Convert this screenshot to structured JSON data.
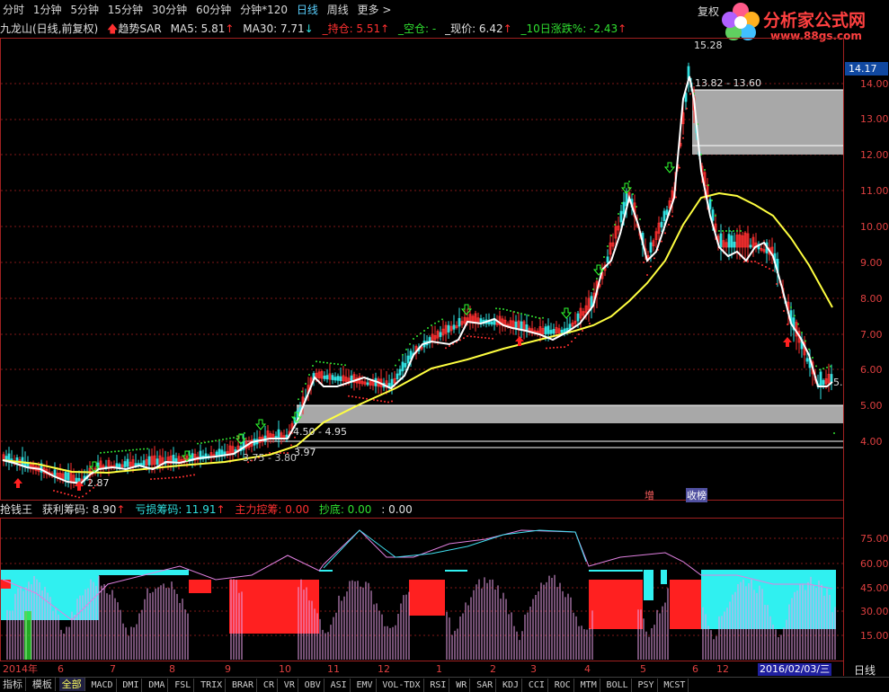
{
  "topbar": {
    "tabs": [
      "分时",
      "1分钟",
      "5分钟",
      "15分钟",
      "30分钟",
      "60分钟",
      "分钟*120",
      "日线",
      "周线",
      "更多 >"
    ],
    "active_tab": "日线",
    "fuquan_label": "复权"
  },
  "brand": {
    "name": "分析家公式网",
    "url": "www.88gs.com"
  },
  "info": {
    "stock": "九龙山(日线,前复权)",
    "indicator": "趋势SAR",
    "ma5": "MA5: 5.81",
    "ma30": "MA30: 7.71",
    "hold": "_持仓: 5.51",
    "empty": "_空仓: -",
    "price": "_现价: 6.42",
    "chg10": "_10日涨跌%: -2.43"
  },
  "price_axis": {
    "labels": [
      "14.00",
      "13.00",
      "12.00",
      "11.00",
      "10.00",
      "9.00",
      "8.00",
      "7.00",
      "6.00",
      "5.00",
      "4.00"
    ],
    "current": "14.17"
  },
  "annotations": {
    "zone_high": "13.82 - 13.60",
    "zone_mid": "4.50 - 4.95",
    "zone_low": "3.75 - 3.80",
    "val_397": "3.97",
    "val_287": "2.87",
    "val_1528": "15.28",
    "val_5": "5.",
    "zeng": "增",
    "shou": "收榜"
  },
  "indicator_bar": {
    "name": "抢钱王",
    "profit": "获利筹码: 8.90",
    "loss": "亏损筹码: 11.91",
    "control": "主力控筹: 0.00",
    "bottom": "抄底: 0.00",
    "extra": ": 0.00"
  },
  "ind_axis": {
    "labels": [
      "75.00",
      "60.00",
      "45.00",
      "30.00",
      "15.00"
    ]
  },
  "x_axis": {
    "labels": [
      "2014年",
      "6",
      "7",
      "8",
      "9",
      "10",
      "11",
      "12",
      "1",
      "2",
      "3",
      "4",
      "5",
      "6",
      "12"
    ],
    "cursor_date": "2016/02/03/三",
    "period": "日线"
  },
  "tabs": [
    "指标",
    "模板",
    "全部",
    "MACD",
    "DMI",
    "DMA",
    "FSL",
    "TRIX",
    "BRAR",
    "CR",
    "VR",
    "OBV",
    "ASI",
    "EMV",
    "VOL-TDX",
    "RSI",
    "WR",
    "SAR",
    "KDJ",
    "CCI",
    "ROC",
    "MTM",
    "BOLL",
    "PSY",
    "MCST"
  ],
  "selected_tab": "全部",
  "colors": {
    "up": "#ff3030",
    "down": "#30e0e0",
    "ma_white": "#ffffff",
    "ma_yellow": "#ffff40",
    "zone": "#a0a0a0"
  }
}
